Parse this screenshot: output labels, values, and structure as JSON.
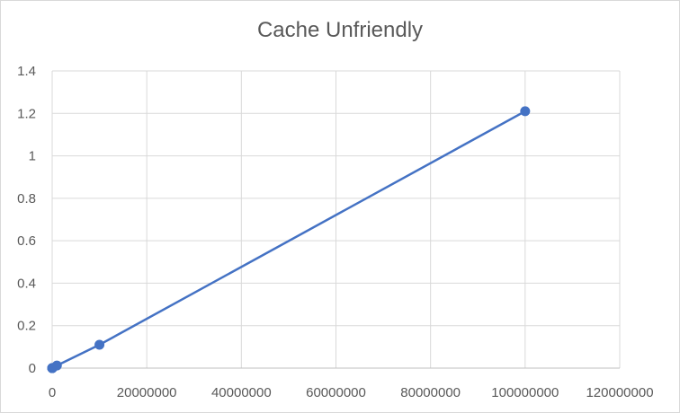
{
  "chart_data": {
    "type": "scatter",
    "title": "Cache Unfriendly",
    "xlabel": "",
    "ylabel": "",
    "xlim": [
      0,
      120000000
    ],
    "ylim": [
      0,
      1.4
    ],
    "x_ticks": [
      0,
      20000000,
      40000000,
      60000000,
      80000000,
      100000000,
      120000000
    ],
    "x_tick_labels": [
      "0",
      "20000000",
      "40000000",
      "60000000",
      "80000000",
      "100000000",
      "120000000"
    ],
    "y_ticks": [
      0,
      0.2,
      0.4,
      0.6,
      0.8,
      1,
      1.2,
      1.4
    ],
    "y_tick_labels": [
      "0",
      "0.2",
      "0.4",
      "0.6",
      "0.8",
      "1",
      "1.2",
      "1.4"
    ],
    "grid": true,
    "legend": "none",
    "series": [
      {
        "color": "#4472c4",
        "lines": true,
        "markers": true,
        "points": [
          {
            "x": 10,
            "y": 0
          },
          {
            "x": 100,
            "y": 0
          },
          {
            "x": 1000,
            "y": 0
          },
          {
            "x": 10000,
            "y": 0
          },
          {
            "x": 100000,
            "y": 0.0012
          },
          {
            "x": 1000000,
            "y": 0.012
          },
          {
            "x": 10000000,
            "y": 0.11
          },
          {
            "x": 100000000,
            "y": 1.21
          }
        ]
      }
    ]
  }
}
